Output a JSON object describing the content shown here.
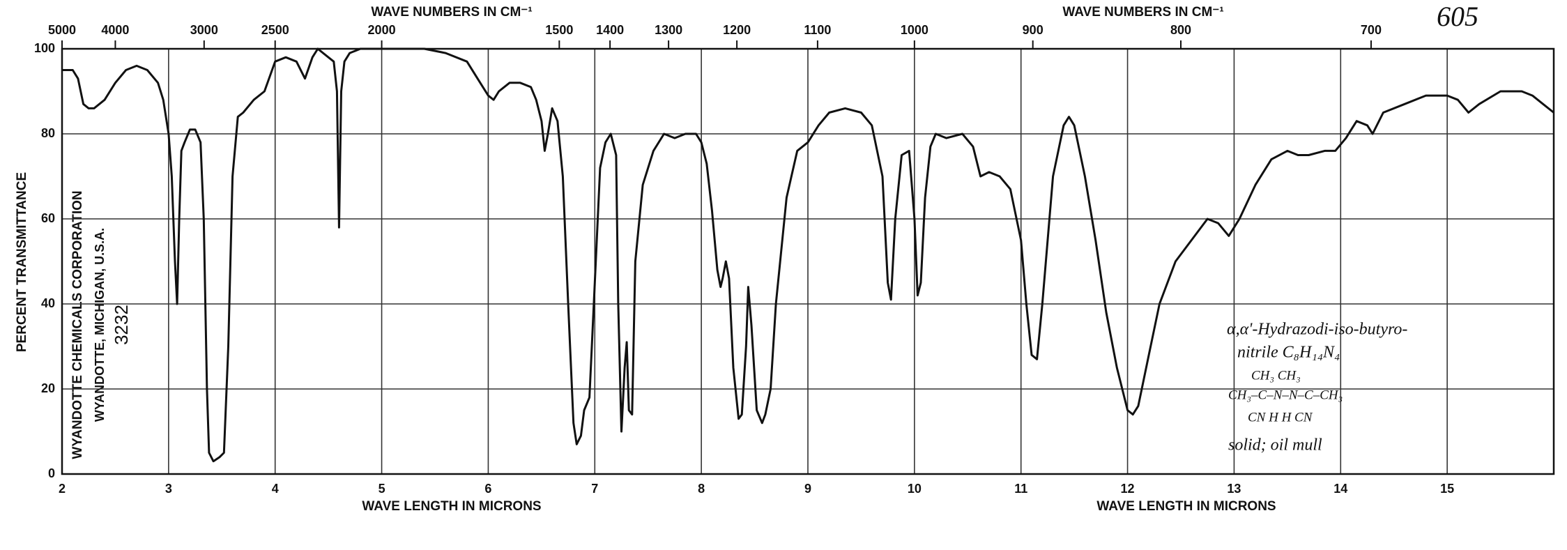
{
  "chart_data": {
    "type": "line",
    "top_axis_title": "WAVE NUMBERS IN CM⁻¹",
    "bottom_axis_title": "WAVE LENGTH IN MICRONS",
    "ylabel": "PERCENT TRANSMITTANCE",
    "corporation": [
      "WYANDOTTE CHEMICALS CORPORATION",
      "WYANDOTTE, MICHIGAN, U.S.A.",
      "3232"
    ],
    "sheet_number": "605",
    "annotations": [
      "α,α'-Hydrazodi-iso-butyro-",
      "nitrile      C₈H₁₄N₄",
      "CH₃                CH₃",
      "CH₃–C–N–N–C–CH₃",
      "CN    H    H    CN",
      "solid; oil mull"
    ],
    "color": "#111111",
    "grid": true,
    "xlim": [
      2,
      16
    ],
    "xticks": [
      2,
      3,
      4,
      5,
      6,
      7,
      8,
      9,
      10,
      11,
      12,
      13,
      14,
      15
    ],
    "wavenumber_ticks": [
      5000,
      4000,
      3000,
      2500,
      2000,
      1500,
      1400,
      1300,
      1200,
      1100,
      1000,
      900,
      800,
      700
    ],
    "ylim": [
      0,
      100
    ],
    "yticks": [
      0,
      20,
      40,
      60,
      80,
      100
    ],
    "x": [
      2.0,
      2.1,
      2.15,
      2.2,
      2.25,
      2.3,
      2.4,
      2.5,
      2.6,
      2.7,
      2.8,
      2.9,
      2.95,
      3.0,
      3.03,
      3.06,
      3.08,
      3.1,
      3.12,
      3.15,
      3.2,
      3.25,
      3.3,
      3.33,
      3.36,
      3.38,
      3.42,
      3.48,
      3.52,
      3.56,
      3.6,
      3.65,
      3.7,
      3.8,
      3.9,
      4.0,
      4.1,
      4.2,
      4.28,
      4.35,
      4.4,
      4.5,
      4.55,
      4.58,
      4.6,
      4.62,
      4.65,
      4.7,
      4.8,
      5.0,
      5.2,
      5.4,
      5.6,
      5.8,
      5.9,
      6.0,
      6.05,
      6.1,
      6.2,
      6.3,
      6.4,
      6.45,
      6.5,
      6.53,
      6.56,
      6.6,
      6.65,
      6.7,
      6.75,
      6.8,
      6.83,
      6.87,
      6.9,
      6.95,
      7.0,
      7.05,
      7.1,
      7.15,
      7.2,
      7.22,
      7.25,
      7.28,
      7.3,
      7.32,
      7.35,
      7.38,
      7.45,
      7.55,
      7.65,
      7.75,
      7.85,
      7.95,
      8.0,
      8.05,
      8.1,
      8.15,
      8.18,
      8.2,
      8.23,
      8.26,
      8.3,
      8.35,
      8.38,
      8.42,
      8.44,
      8.47,
      8.52,
      8.57,
      8.6,
      8.65,
      8.7,
      8.8,
      8.9,
      9.0,
      9.1,
      9.2,
      9.35,
      9.5,
      9.6,
      9.7,
      9.75,
      9.78,
      9.82,
      9.88,
      9.95,
      10.0,
      10.03,
      10.06,
      10.1,
      10.15,
      10.2,
      10.3,
      10.45,
      10.55,
      10.62,
      10.7,
      10.8,
      10.9,
      11.0,
      11.05,
      11.1,
      11.15,
      11.2,
      11.3,
      11.4,
      11.45,
      11.5,
      11.6,
      11.7,
      11.8,
      11.9,
      12.0,
      12.05,
      12.1,
      12.2,
      12.3,
      12.45,
      12.6,
      12.75,
      12.85,
      12.95,
      13.05,
      13.2,
      13.35,
      13.5,
      13.6,
      13.7,
      13.85,
      13.95,
      14.05,
      14.15,
      14.25,
      14.3,
      14.4,
      14.6,
      14.8,
      15.0,
      15.1,
      15.2,
      15.3,
      15.5,
      15.7,
      15.8,
      15.9,
      16.0
    ],
    "values": [
      95,
      95,
      93,
      87,
      86,
      86,
      88,
      92,
      95,
      96,
      95,
      92,
      88,
      80,
      70,
      50,
      40,
      60,
      76,
      78,
      81,
      81,
      78,
      60,
      20,
      5,
      3,
      4,
      5,
      30,
      70,
      84,
      85,
      88,
      90,
      97,
      98,
      97,
      93,
      98,
      100,
      98,
      97,
      90,
      58,
      90,
      97,
      99,
      100,
      100,
      100,
      100,
      99,
      97,
      93,
      89,
      88,
      90,
      92,
      92,
      91,
      88,
      83,
      76,
      80,
      86,
      83,
      70,
      40,
      12,
      7,
      9,
      15,
      18,
      45,
      72,
      78,
      80,
      75,
      40,
      10,
      25,
      31,
      15,
      14,
      50,
      68,
      76,
      80,
      79,
      80,
      80,
      78,
      73,
      62,
      48,
      44,
      46,
      50,
      46,
      25,
      13,
      14,
      30,
      44,
      35,
      15,
      12,
      14,
      20,
      40,
      65,
      76,
      78,
      82,
      85,
      86,
      85,
      82,
      70,
      45,
      41,
      60,
      75,
      76,
      60,
      42,
      45,
      65,
      77,
      80,
      79,
      80,
      77,
      70,
      71,
      70,
      67,
      55,
      40,
      28,
      27,
      40,
      70,
      82,
      84,
      82,
      70,
      55,
      38,
      25,
      15,
      14,
      16,
      28,
      40,
      50,
      55,
      60,
      59,
      56,
      60,
      68,
      74,
      76,
      75,
      75,
      76,
      76,
      79,
      83,
      82,
      80,
      85,
      87,
      89,
      89,
      88,
      85,
      87,
      90,
      90,
      89,
      87,
      85
    ]
  }
}
